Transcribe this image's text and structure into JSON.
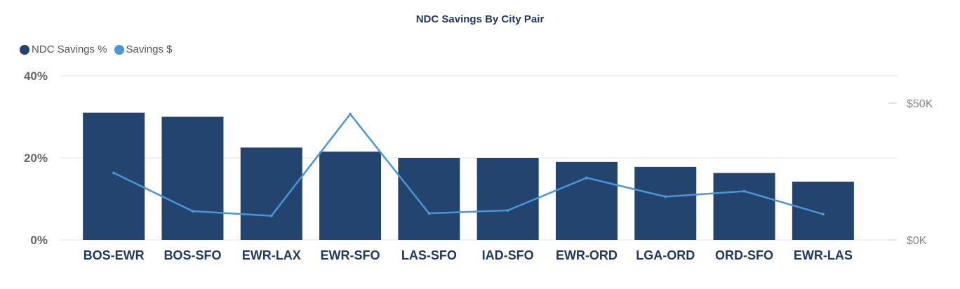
{
  "chart_data": {
    "type": "bar",
    "title": "NDC Savings By City Pair",
    "categories": [
      "BOS-EWR",
      "BOS-SFO",
      "EWR-LAX",
      "EWR-SFO",
      "LAS-SFO",
      "IAD-SFO",
      "EWR-ORD",
      "LGA-ORD",
      "ORD-SFO",
      "EWR-LAS"
    ],
    "series": [
      {
        "name": "NDC Savings %",
        "type": "bar",
        "axis": "left",
        "color": "#22446e",
        "values": [
          31,
          30,
          22.5,
          21.5,
          20,
          20,
          19,
          17.8,
          16.3,
          14.2
        ]
      },
      {
        "name": "Savings $",
        "type": "line",
        "axis": "right",
        "color": "#4a96d8",
        "values": [
          24500,
          10500,
          8800,
          46000,
          9700,
          10800,
          22700,
          15800,
          17800,
          9400
        ]
      }
    ],
    "y_left": {
      "ticks": [
        "0%",
        "20%",
        "40%"
      ],
      "tick_values": [
        0,
        20,
        40
      ],
      "range": [
        0,
        40
      ]
    },
    "y_right": {
      "ticks": [
        "$0K",
        "$50K"
      ],
      "tick_values": [
        0,
        50000
      ],
      "range": [
        0,
        60000
      ]
    },
    "grid": true,
    "legend_position": "top-left"
  }
}
